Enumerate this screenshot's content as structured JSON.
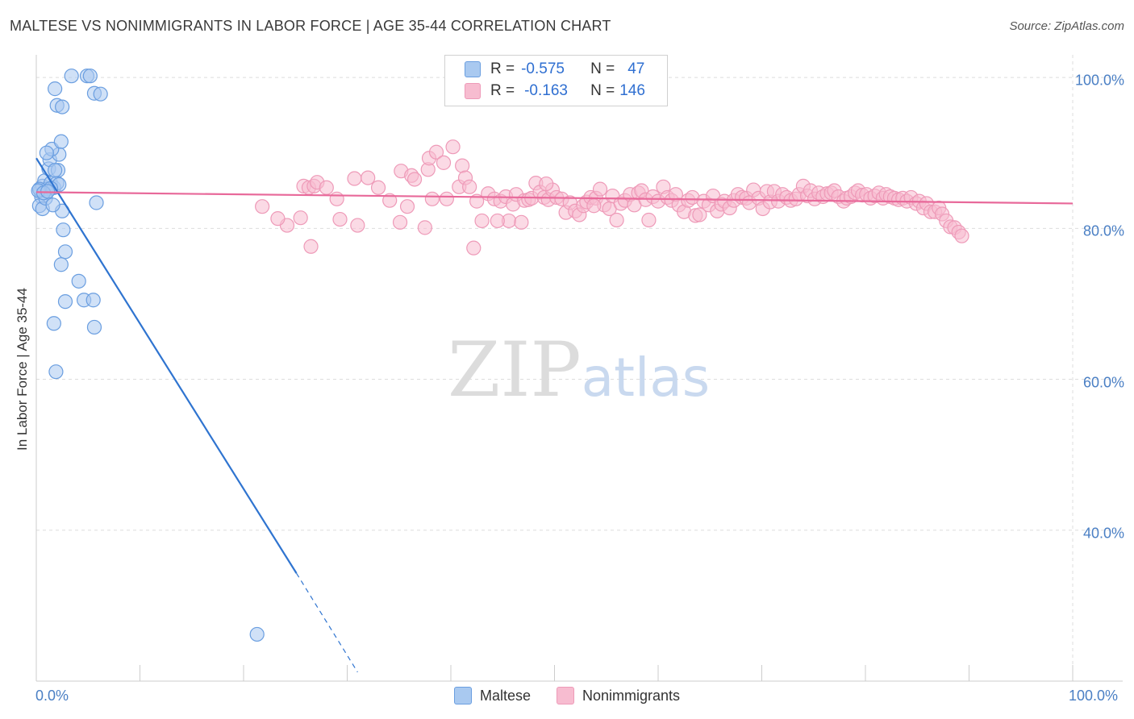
{
  "title": "MALTESE VS NONIMMIGRANTS IN LABOR FORCE | AGE 35-44 CORRELATION CHART",
  "source": "Source: ZipAtlas.com",
  "watermark": {
    "zip": "ZIP",
    "atlas": "atlas"
  },
  "legend": {
    "r_label": "R =",
    "n_label": "N =",
    "series": [
      {
        "r": "-0.575",
        "n": "47"
      },
      {
        "r": "-0.163",
        "n": "146"
      }
    ]
  },
  "bottom_legend": [
    "Maltese",
    "Nonimmigrants"
  ],
  "colors": {
    "maltese_fill": "#a9c9f0",
    "maltese_stroke": "#6a9ee0",
    "maltese_line": "#2f74d0",
    "nonimm_fill": "#f7bcd0",
    "nonimm_stroke": "#ee9ab8",
    "nonimm_line": "#e8699a",
    "grid": "#dddddd",
    "axis_text": "#4a7fc4"
  },
  "chart_data": {
    "type": "scatter",
    "title": "MALTESE VS NONIMMIGRANTS IN LABOR FORCE | AGE 35-44 CORRELATION CHART",
    "xlabel": "",
    "ylabel": "In Labor Force | Age 35-44",
    "xlim": [
      0,
      100
    ],
    "ylim": [
      20,
      103
    ],
    "y_ticks": [
      {
        "v": 40,
        "label": "40.0%"
      },
      {
        "v": 60,
        "label": "60.0%"
      },
      {
        "v": 80,
        "label": "80.0%"
      },
      {
        "v": 100,
        "label": "100.0%"
      }
    ],
    "x_tick_labels": [
      {
        "v": 0,
        "label": "0.0%"
      },
      {
        "v": 100,
        "label": "100.0%"
      }
    ],
    "x_minor_ticks": [
      0,
      10,
      20,
      30,
      40,
      50,
      60,
      70,
      80,
      90,
      100
    ],
    "series": [
      {
        "name": "Maltese",
        "r": -0.575,
        "n": 47,
        "trend": {
          "x0": 0,
          "y0": 89.3,
          "x1": 25.1,
          "y1": 34.3,
          "dash_to_x": 31,
          "dash_to_y": 21.2
        },
        "points": [
          [
            0.4,
            85.0
          ],
          [
            0.5,
            84.2
          ],
          [
            0.3,
            83.0
          ],
          [
            0.6,
            85.6
          ],
          [
            0.8,
            86.3
          ],
          [
            1.0,
            85.2
          ],
          [
            1.2,
            87.9
          ],
          [
            1.4,
            86.0
          ],
          [
            1.3,
            89.1
          ],
          [
            1.7,
            85.4
          ],
          [
            2.0,
            86.0
          ],
          [
            2.2,
            89.8
          ],
          [
            1.5,
            90.5
          ],
          [
            1.0,
            90.0
          ],
          [
            2.4,
            91.5
          ],
          [
            2.5,
            82.3
          ],
          [
            2.1,
            87.7
          ],
          [
            2.6,
            79.8
          ],
          [
            2.8,
            76.9
          ],
          [
            2.4,
            75.2
          ],
          [
            2.8,
            70.3
          ],
          [
            4.1,
            73.0
          ],
          [
            4.6,
            70.5
          ],
          [
            5.5,
            70.5
          ],
          [
            1.7,
            67.4
          ],
          [
            5.6,
            66.9
          ],
          [
            1.9,
            61.0
          ],
          [
            1.8,
            98.5
          ],
          [
            2.0,
            96.3
          ],
          [
            2.5,
            96.1
          ],
          [
            3.4,
            100.2
          ],
          [
            4.9,
            100.2
          ],
          [
            5.2,
            100.2
          ],
          [
            5.6,
            97.9
          ],
          [
            6.2,
            97.8
          ],
          [
            5.8,
            83.4
          ],
          [
            2.2,
            85.8
          ],
          [
            1.4,
            85.3
          ],
          [
            0.3,
            85.2
          ],
          [
            0.6,
            82.6
          ],
          [
            0.9,
            84.0
          ],
          [
            1.6,
            83.1
          ],
          [
            0.2,
            85.0
          ],
          [
            0.7,
            84.7
          ],
          [
            1.1,
            84.9
          ],
          [
            1.8,
            87.7
          ],
          [
            21.3,
            26.2
          ]
        ]
      },
      {
        "name": "Nonimmigrants",
        "r": -0.163,
        "n": 146,
        "trend": {
          "x0": 0,
          "y0": 84.8,
          "x1": 100,
          "y1": 83.3
        },
        "points": [
          [
            21.8,
            82.9
          ],
          [
            24.2,
            80.4
          ],
          [
            25.5,
            81.4
          ],
          [
            25.8,
            85.6
          ],
          [
            26.3,
            85.4
          ],
          [
            26.5,
            77.6
          ],
          [
            26.8,
            85.6
          ],
          [
            27.1,
            86.1
          ],
          [
            28.0,
            85.4
          ],
          [
            29.0,
            83.9
          ],
          [
            29.3,
            81.2
          ],
          [
            30.7,
            86.6
          ],
          [
            31.0,
            80.4
          ],
          [
            33.0,
            85.4
          ],
          [
            34.1,
            83.7
          ],
          [
            35.1,
            80.8
          ],
          [
            35.2,
            87.6
          ],
          [
            35.8,
            82.9
          ],
          [
            36.2,
            87.0
          ],
          [
            36.5,
            86.5
          ],
          [
            37.5,
            80.1
          ],
          [
            37.8,
            87.8
          ],
          [
            37.9,
            89.3
          ],
          [
            38.6,
            90.1
          ],
          [
            39.3,
            88.7
          ],
          [
            39.6,
            83.9
          ],
          [
            40.2,
            90.8
          ],
          [
            40.8,
            85.5
          ],
          [
            41.1,
            88.3
          ],
          [
            41.4,
            86.7
          ],
          [
            41.8,
            85.5
          ],
          [
            42.2,
            77.4
          ],
          [
            42.5,
            83.6
          ],
          [
            43.0,
            81.0
          ],
          [
            43.6,
            84.6
          ],
          [
            44.2,
            83.9
          ],
          [
            44.8,
            83.6
          ],
          [
            45.3,
            84.2
          ],
          [
            45.6,
            81.0
          ],
          [
            46.0,
            83.2
          ],
          [
            46.3,
            84.5
          ],
          [
            46.8,
            80.8
          ],
          [
            47.1,
            83.7
          ],
          [
            47.5,
            83.8
          ],
          [
            47.8,
            84.0
          ],
          [
            48.2,
            86.0
          ],
          [
            48.6,
            84.8
          ],
          [
            49.0,
            84.1
          ],
          [
            49.4,
            83.8
          ],
          [
            49.8,
            85.1
          ],
          [
            50.2,
            84.1
          ],
          [
            50.7,
            83.9
          ],
          [
            51.1,
            82.1
          ],
          [
            51.5,
            83.4
          ],
          [
            52.0,
            82.3
          ],
          [
            52.4,
            81.8
          ],
          [
            52.8,
            83.0
          ],
          [
            53.1,
            83.5
          ],
          [
            53.5,
            84.1
          ],
          [
            54.0,
            84.0
          ],
          [
            54.4,
            85.2
          ],
          [
            54.8,
            83.1
          ],
          [
            55.3,
            82.6
          ],
          [
            55.6,
            84.3
          ],
          [
            56.0,
            81.1
          ],
          [
            56.4,
            83.3
          ],
          [
            56.8,
            83.7
          ],
          [
            57.3,
            84.5
          ],
          [
            57.7,
            83.1
          ],
          [
            58.1,
            84.7
          ],
          [
            58.4,
            85.0
          ],
          [
            58.8,
            83.8
          ],
          [
            59.1,
            81.1
          ],
          [
            59.5,
            84.2
          ],
          [
            60.0,
            83.6
          ],
          [
            60.5,
            85.5
          ],
          [
            60.9,
            84.1
          ],
          [
            61.3,
            83.7
          ],
          [
            61.7,
            84.5
          ],
          [
            62.0,
            83.1
          ],
          [
            62.5,
            82.2
          ],
          [
            62.9,
            83.7
          ],
          [
            63.3,
            84.1
          ],
          [
            63.6,
            81.7
          ],
          [
            64.0,
            81.8
          ],
          [
            64.4,
            83.6
          ],
          [
            64.9,
            83.1
          ],
          [
            65.3,
            84.3
          ],
          [
            65.7,
            82.3
          ],
          [
            66.1,
            83.2
          ],
          [
            66.4,
            83.6
          ],
          [
            66.9,
            82.7
          ],
          [
            67.3,
            83.7
          ],
          [
            67.7,
            84.5
          ],
          [
            68.1,
            84.1
          ],
          [
            68.5,
            84.0
          ],
          [
            68.8,
            83.4
          ],
          [
            69.2,
            85.1
          ],
          [
            69.7,
            84.0
          ],
          [
            70.1,
            82.6
          ],
          [
            70.5,
            84.9
          ],
          [
            70.8,
            83.5
          ],
          [
            71.2,
            84.9
          ],
          [
            71.6,
            83.6
          ],
          [
            72.0,
            84.5
          ],
          [
            72.4,
            84.1
          ],
          [
            72.8,
            83.7
          ],
          [
            73.3,
            83.9
          ],
          [
            73.6,
            84.5
          ],
          [
            74.0,
            85.6
          ],
          [
            74.4,
            84.3
          ],
          [
            74.7,
            85.0
          ],
          [
            75.1,
            83.9
          ],
          [
            75.5,
            84.7
          ],
          [
            75.9,
            84.2
          ],
          [
            76.3,
            84.6
          ],
          [
            76.7,
            84.7
          ],
          [
            77.0,
            85.0
          ],
          [
            77.4,
            84.2
          ],
          [
            77.9,
            83.6
          ],
          [
            78.2,
            84.0
          ],
          [
            78.6,
            84.2
          ],
          [
            79.0,
            84.7
          ],
          [
            79.3,
            85.0
          ],
          [
            79.7,
            84.4
          ],
          [
            80.1,
            84.5
          ],
          [
            80.5,
            84.0
          ],
          [
            80.9,
            84.3
          ],
          [
            81.3,
            84.7
          ],
          [
            81.7,
            84.0
          ],
          [
            82.0,
            84.5
          ],
          [
            82.4,
            84.2
          ],
          [
            82.8,
            84.0
          ],
          [
            83.2,
            83.8
          ],
          [
            83.6,
            84.0
          ],
          [
            84.0,
            83.6
          ],
          [
            84.4,
            84.1
          ],
          [
            84.9,
            83.3
          ],
          [
            85.2,
            83.6
          ],
          [
            85.6,
            82.7
          ],
          [
            85.9,
            83.3
          ],
          [
            86.3,
            82.2
          ],
          [
            86.7,
            82.2
          ],
          [
            87.1,
            82.7
          ],
          [
            87.4,
            81.9
          ],
          [
            87.8,
            81.0
          ],
          [
            88.2,
            80.2
          ],
          [
            88.6,
            80.1
          ],
          [
            89.0,
            79.5
          ],
          [
            89.3,
            79.0
          ],
          [
            44.5,
            81.0
          ],
          [
            38.2,
            83.9
          ],
          [
            32.0,
            86.7
          ],
          [
            23.3,
            81.3
          ],
          [
            49.2,
            85.9
          ],
          [
            53.8,
            83.0
          ]
        ]
      }
    ]
  }
}
